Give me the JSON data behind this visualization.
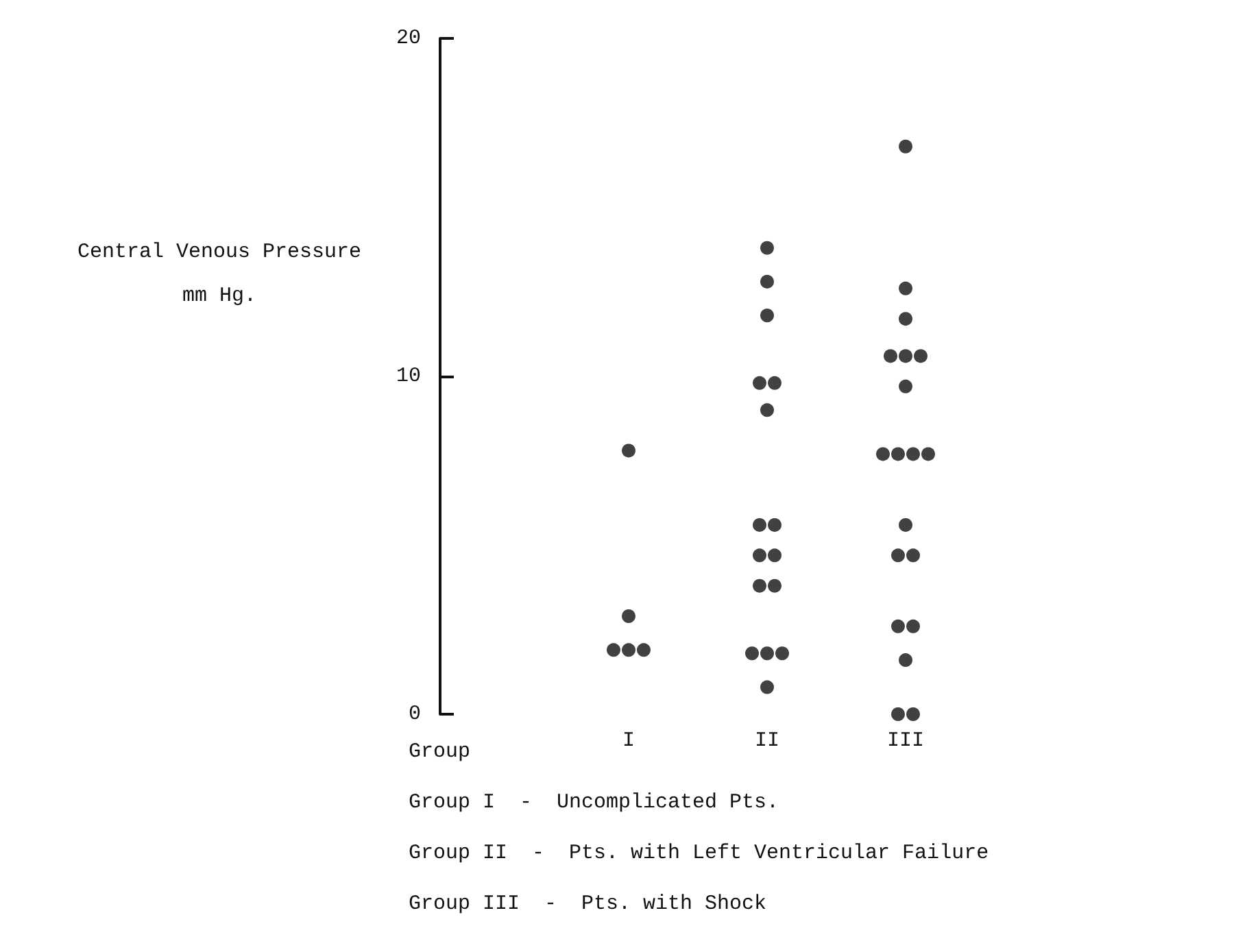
{
  "chart_data": {
    "type": "scatter",
    "xlabel": "Group",
    "ylabel": "Central Venous Pressure\nmm Hg.",
    "categories": [
      "I",
      "II",
      "III"
    ],
    "ylim": [
      0,
      20
    ],
    "yticks": [
      0,
      10,
      20
    ],
    "grid": false,
    "marker": "circle",
    "series": [
      {
        "color": "#111111",
        "x": [
          "I",
          "I",
          "I",
          "I",
          "I",
          "II",
          "II",
          "II",
          "II",
          "II",
          "II",
          "II",
          "II",
          "II",
          "II",
          "II",
          "II",
          "II",
          "II",
          "II",
          "II",
          "III",
          "III",
          "III",
          "III",
          "III",
          "III",
          "III",
          "III",
          "III",
          "III",
          "III",
          "III",
          "III",
          "III",
          "III",
          "III",
          "III",
          "III",
          "III"
        ],
        "values": [
          7.8,
          2.9,
          1.9,
          1.9,
          1.9,
          13.8,
          12.8,
          11.8,
          9.8,
          9.8,
          9.0,
          5.6,
          5.6,
          4.7,
          4.7,
          3.8,
          3.8,
          1.8,
          1.8,
          1.8,
          0.8,
          16.8,
          12.6,
          11.7,
          10.6,
          10.6,
          10.6,
          9.7,
          7.7,
          7.7,
          7.7,
          7.7,
          5.6,
          4.7,
          4.7,
          2.6,
          2.6,
          1.6,
          0,
          0
        ]
      }
    ],
    "annotations": [
      "Group I  -  Uncomplicated Pts.",
      "Group II  -  Pts. with Left Ventricular Failure",
      "Group III  -  Pts. with Shock"
    ]
  }
}
